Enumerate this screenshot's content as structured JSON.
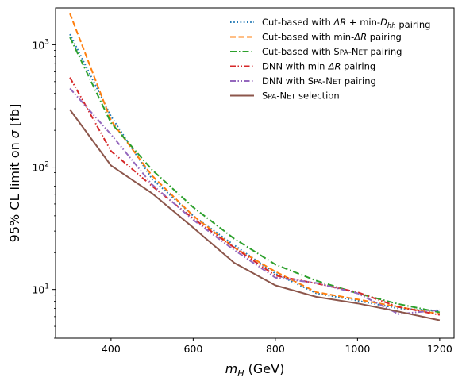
{
  "chart_data": {
    "type": "line",
    "xlabel": "m_H (GeV)",
    "ylabel": "95% CL limit on σ [fb]",
    "x_scale": "linear",
    "y_scale": "log",
    "xlim": [
      265,
      1235
    ],
    "ylim": [
      4,
      2000
    ],
    "x_ticks": [
      400,
      600,
      800,
      1000,
      1200
    ],
    "y_ticks": [
      {
        "value": 10,
        "base": "10",
        "exp": "1"
      },
      {
        "value": 100,
        "base": "10",
        "exp": "2"
      },
      {
        "value": 1000,
        "base": "10",
        "exp": "3"
      }
    ],
    "grid": false,
    "legend_position": "top-right",
    "x": [
      300,
      400,
      500,
      600,
      700,
      800,
      900,
      1000,
      1100,
      1200
    ],
    "series": [
      {
        "name": "Cut-based with ΔR + min-D_hh pairing",
        "legend_parts": [
          {
            "t": "Cut-based with "
          },
          {
            "t": "ΔR",
            "i": true
          },
          {
            "t": " + min-"
          },
          {
            "t": "D",
            "i": true
          },
          {
            "t": "hh",
            "i": true,
            "sub": true
          },
          {
            "t": " pairing"
          }
        ],
        "color": "#1f77b4",
        "dash": "1.6,2.6",
        "values": [
          1220,
          260,
          80,
          40,
          23,
          13.5,
          9.3,
          8.1,
          7.0,
          6.7
        ]
      },
      {
        "name": "Cut-based with min-ΔR pairing",
        "legend_parts": [
          {
            "t": "Cut-based with min-"
          },
          {
            "t": "ΔR",
            "i": true
          },
          {
            "t": " pairing"
          }
        ],
        "color": "#ff7f0e",
        "dash": "7,3.5",
        "values": [
          1800,
          240,
          85,
          40,
          22,
          14,
          9.5,
          8.3,
          7.2,
          6.3
        ]
      },
      {
        "name": "Cut-based with SPA-NET pairing",
        "legend_parts": [
          {
            "t": "Cut-based with "
          },
          {
            "t": "SPA-NET",
            "sc": true
          },
          {
            "t": " pairing"
          }
        ],
        "color": "#2ca02c",
        "dash": "8,3,1.5,3",
        "values": [
          1150,
          230,
          95,
          47,
          26,
          16,
          11.8,
          9.3,
          7.6,
          6.5
        ]
      },
      {
        "name": "DNN with min-ΔR pairing",
        "legend_parts": [
          {
            "t": "DNN with min-"
          },
          {
            "t": "ΔR",
            "i": true
          },
          {
            "t": " pairing"
          }
        ],
        "color": "#d62728",
        "dash": "7,2.5,1.5,2.5,1.5,2.5",
        "values": [
          540,
          135,
          70,
          38,
          22,
          13,
          11.2,
          9.5,
          7.2,
          6.2
        ]
      },
      {
        "name": "DNN with SPA-NET pairing",
        "legend_parts": [
          {
            "t": "DNN with "
          },
          {
            "t": "SPA-NET",
            "sc": true
          },
          {
            "t": " pairing"
          }
        ],
        "color": "#9467bd",
        "dash": "7,2.5,1.5,2.5,1.5,2.5",
        "values": [
          440,
          185,
          72,
          37,
          21,
          12.5,
          11.3,
          9.3,
          6.3,
          6.8
        ]
      },
      {
        "name": "SPA-NET selection",
        "legend_parts": [
          {
            "t": "SPA-NET",
            "sc": true
          },
          {
            "t": " selection"
          }
        ],
        "color": "#8c564b",
        "dash": "",
        "values": [
          295,
          103,
          61,
          32,
          16.5,
          10.8,
          8.7,
          7.7,
          6.6,
          5.6
        ]
      }
    ]
  }
}
